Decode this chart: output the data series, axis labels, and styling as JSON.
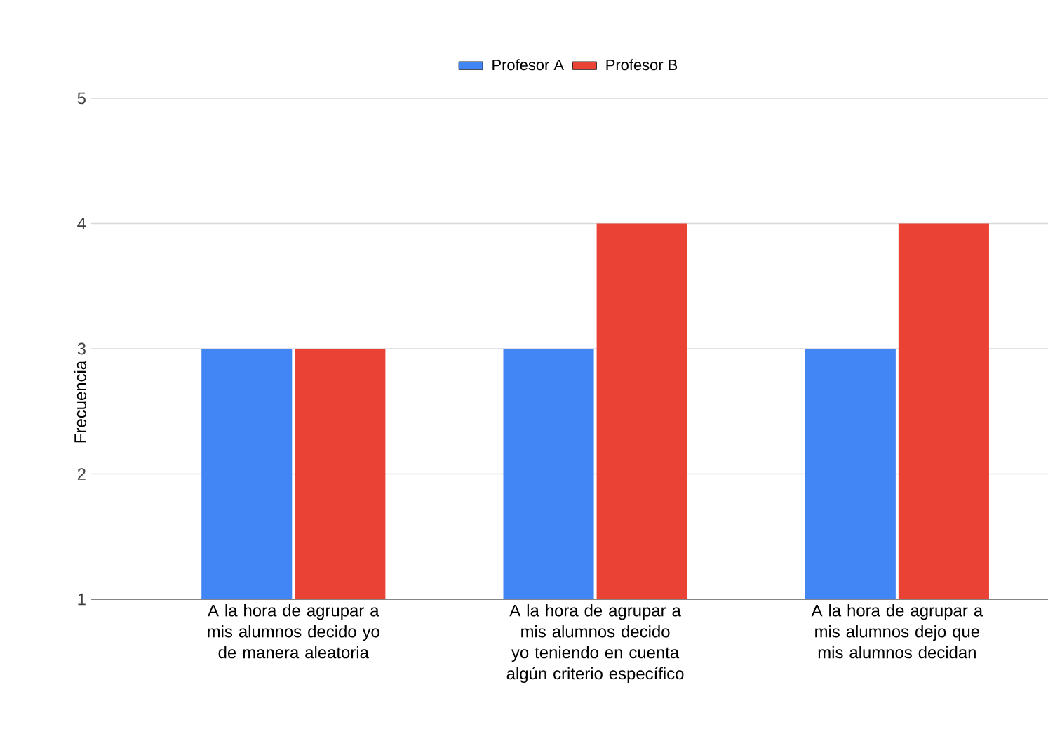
{
  "chart_data": {
    "type": "bar",
    "ylabel": "Frecuencia",
    "categories": [
      "A la hora de agrupar a mis alumnos decido yo de manera aleatoria",
      "A la hora de agrupar a mis alumnos decido yo teniendo en cuenta algún criterio específico",
      "A la hora de agrupar a mis alumnos dejo que mis alumnos decidan"
    ],
    "series": [
      {
        "name": "Profesor A",
        "color": "#4285f4",
        "values": [
          3,
          3,
          3
        ]
      },
      {
        "name": "Profesor B",
        "color": "#ea4335",
        "values": [
          3,
          4,
          4
        ]
      }
    ],
    "ylim": [
      1,
      5
    ],
    "yticks": [
      1,
      2,
      3,
      4,
      5
    ],
    "grid": "y",
    "legend": "top"
  }
}
